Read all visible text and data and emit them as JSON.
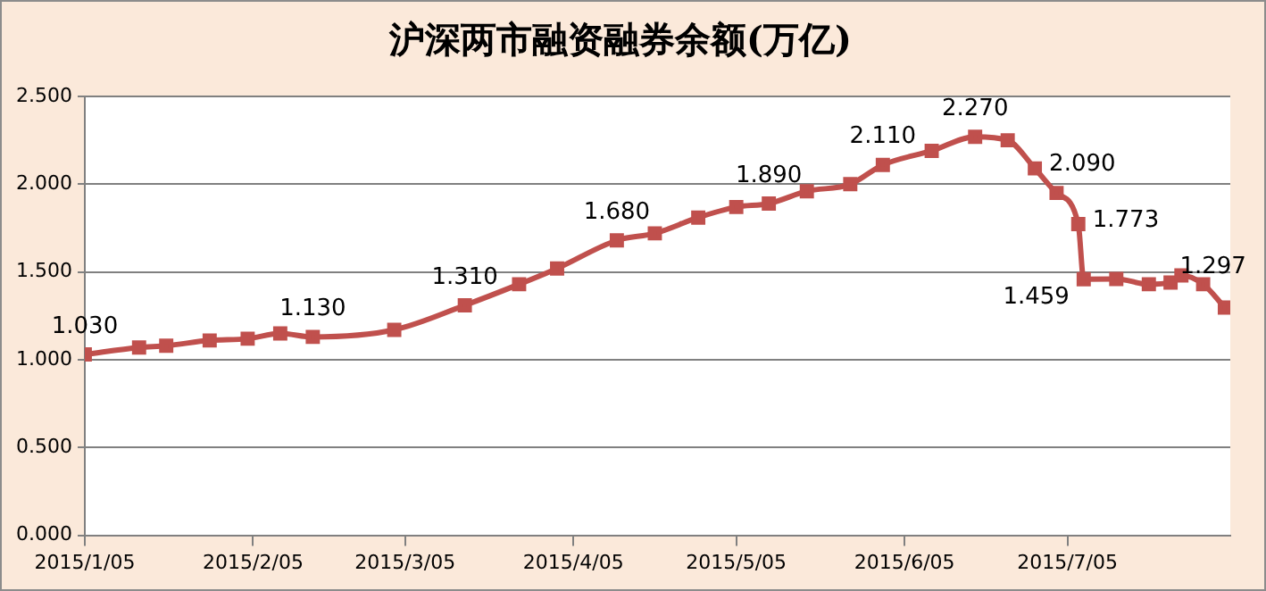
{
  "chart_data": {
    "type": "line",
    "title": "沪深两市融资融券余额(万亿)",
    "x": [
      "2015-01-05",
      "2015-01-15",
      "2015-01-20",
      "2015-01-28",
      "2015-02-04",
      "2015-02-10",
      "2015-02-16",
      "2015-03-03",
      "2015-03-16",
      "2015-03-26",
      "2015-04-02",
      "2015-04-13",
      "2015-04-20",
      "2015-04-28",
      "2015-05-05",
      "2015-05-11",
      "2015-05-18",
      "2015-05-26",
      "2015-06-01",
      "2015-06-10",
      "2015-06-18",
      "2015-06-24",
      "2015-06-29",
      "2015-07-03",
      "2015-07-07",
      "2015-07-08",
      "2015-07-14",
      "2015-07-20",
      "2015-07-24",
      "2015-07-26",
      "2015-07-30",
      "2015-08-03"
    ],
    "series": [
      {
        "color": "#c0504d",
        "values": [
          1.03,
          1.07,
          1.08,
          1.11,
          1.12,
          1.15,
          1.13,
          1.17,
          1.31,
          1.43,
          1.52,
          1.68,
          1.72,
          1.81,
          1.87,
          1.89,
          1.96,
          2.0,
          2.11,
          2.19,
          2.27,
          2.25,
          2.09,
          1.95,
          1.773,
          1.459,
          1.46,
          1.43,
          1.44,
          1.48,
          1.43,
          1.297
        ],
        "value_labels": [
          "1.030",
          null,
          null,
          null,
          null,
          null,
          "1.130",
          null,
          "1.310",
          null,
          null,
          "1.680",
          null,
          null,
          null,
          "1.890",
          null,
          null,
          "2.110",
          null,
          "2.270",
          null,
          "2.090",
          null,
          "1.773",
          "1.459",
          null,
          null,
          null,
          null,
          null,
          "1.297"
        ]
      }
    ],
    "xlim": [
      "2015-01-05",
      "2015-08-04"
    ],
    "xticks": [
      {
        "value": "2015-01-05",
        "label": "2015/1/05"
      },
      {
        "value": "2015-02-05",
        "label": "2015/2/05"
      },
      {
        "value": "2015-03-05",
        "label": "2015/3/05"
      },
      {
        "value": "2015-04-05",
        "label": "2015/4/05"
      },
      {
        "value": "2015-05-05",
        "label": "2015/5/05"
      },
      {
        "value": "2015-06-05",
        "label": "2015/6/05"
      },
      {
        "value": "2015-07-05",
        "label": "2015/7/05"
      }
    ],
    "ylim": [
      0,
      2.5
    ],
    "yticks": [
      {
        "value": 0,
        "label": "0.000"
      },
      {
        "value": 0.5,
        "label": "0.500"
      },
      {
        "value": 1,
        "label": "1.000"
      },
      {
        "value": 1.5,
        "label": "1.500"
      },
      {
        "value": 2,
        "label": "2.000"
      },
      {
        "value": 2.5,
        "label": "2.500"
      }
    ],
    "grid": "y",
    "legend": false,
    "marker": "square",
    "line_style": "solid"
  }
}
